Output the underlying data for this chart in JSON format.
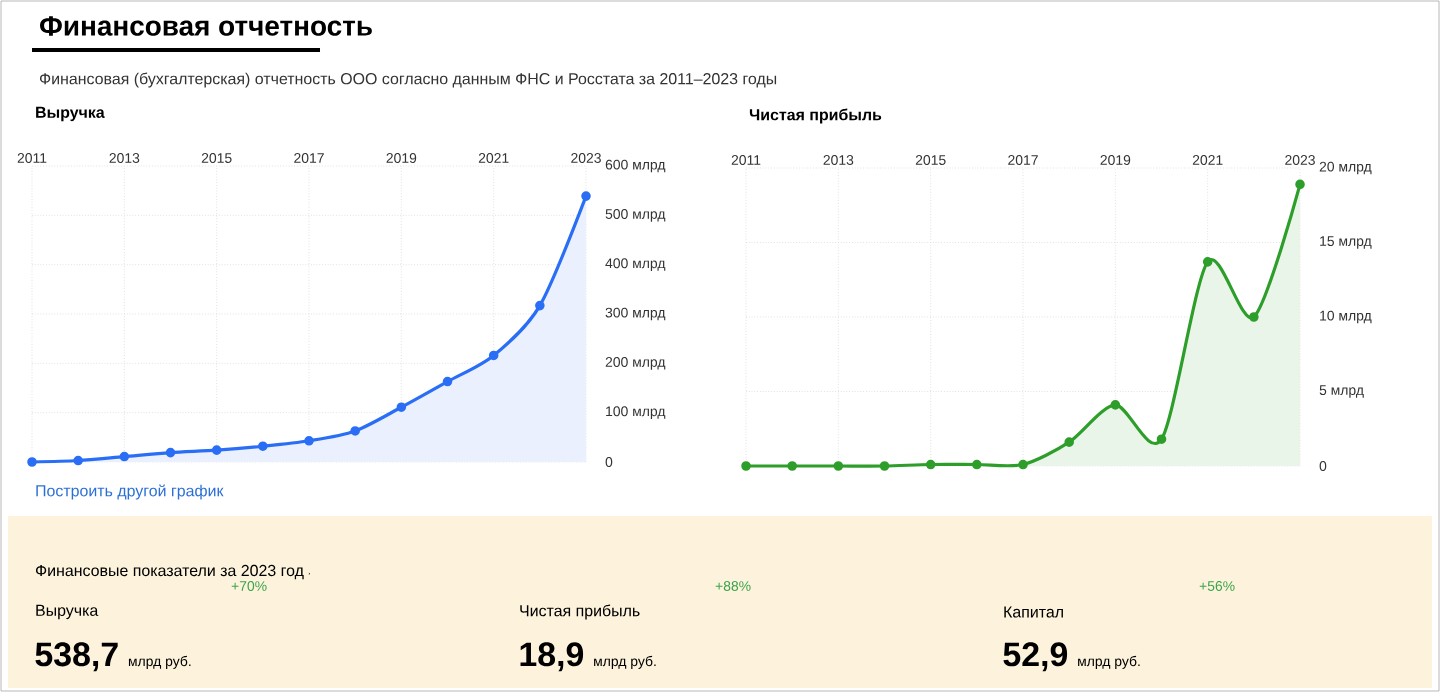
{
  "chart_data": [
    {
      "type": "other",
      "title": "Финансовая отчетность",
      "subtitle": "Финансовая (бухгалтерская) отчетность ООО согласно данным ФНС и Росстата за 2011–2023 годы",
      "annotations": [
        "Построить другой график"
      ]
    },
    {
      "type": "area",
      "title": "Выручка",
      "x": [
        2011,
        2012,
        2013,
        2014,
        2015,
        2016,
        2017,
        2018,
        2019,
        2020,
        2021,
        2022,
        2023
      ],
      "series": [
        {
          "color": "#2a6ef5",
          "values": [
            0,
            3,
            11,
            19,
            24,
            32,
            43,
            63,
            111,
            163,
            216,
            317,
            539
          ]
        }
      ],
      "xlim": [
        2011,
        2023
      ],
      "xticks": [
        2011,
        2013,
        2015,
        2017,
        2019,
        2021,
        2023
      ],
      "ylim": [
        0,
        600
      ],
      "yticks": [
        0,
        {
          "value": 100,
          "label": "100 млрд"
        },
        {
          "value": 200,
          "label": "200 млрд"
        },
        {
          "value": 300,
          "label": "300 млрд"
        },
        {
          "value": 400,
          "label": "400 млрд"
        },
        {
          "value": 500,
          "label": "500 млрд"
        },
        {
          "value": 600,
          "label": "600 млрд"
        }
      ],
      "grid": true,
      "marker": "circle",
      "line_style": "solid"
    },
    {
      "type": "area",
      "title": "Чистая прибыль",
      "x": [
        2011,
        2012,
        2013,
        2014,
        2015,
        2016,
        2017,
        2018,
        2019,
        2020,
        2021,
        2022,
        2023
      ],
      "series": [
        {
          "color": "#2e9e2a",
          "values": [
            0,
            0,
            0,
            0,
            0.1,
            0.1,
            0.1,
            1.6,
            4.1,
            1.8,
            13.7,
            10,
            18.9
          ]
        }
      ],
      "xlim": [
        2011,
        2023
      ],
      "xticks": [
        2011,
        2013,
        2015,
        2017,
        2019,
        2021,
        2023
      ],
      "ylim": [
        0,
        20
      ],
      "yticks": [
        0,
        {
          "value": 5,
          "label": "5 млрд"
        },
        {
          "value": 10,
          "label": "10 млрд"
        },
        {
          "value": 15,
          "label": "15 млрд"
        },
        {
          "value": 20,
          "label": "20 млрд"
        }
      ],
      "grid": true,
      "marker": "circle",
      "line_style": "solid"
    },
    {
      "type": "other",
      "title": "Финансовые показатели за 2023 год",
      "categories": [
        "Выручка",
        "Чистая прибыль",
        "Капитал"
      ],
      "value_labels": [
        "538,7",
        "18,9",
        "52,9"
      ],
      "annotations": [
        "млрд руб.",
        "млрд руб.",
        "млрд руб.",
        "+70%",
        "+88%",
        "+56%"
      ]
    }
  ]
}
